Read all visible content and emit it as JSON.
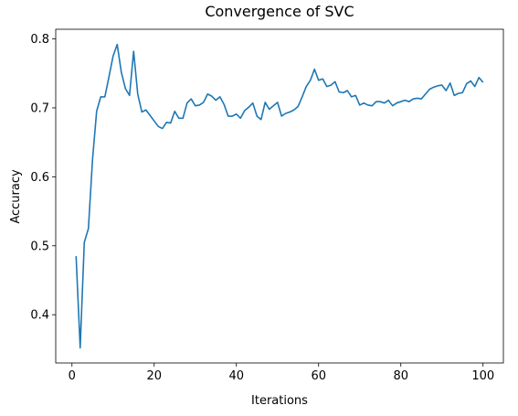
{
  "chart_data": {
    "type": "line",
    "title": "Convergence of SVC",
    "x_label": "Iterations",
    "y_label": "Accuracy",
    "x": [
      1,
      2,
      3,
      4,
      5,
      6,
      7,
      8,
      9,
      10,
      11,
      12,
      13,
      14,
      15,
      16,
      17,
      18,
      19,
      20,
      21,
      22,
      23,
      24,
      25,
      26,
      27,
      28,
      29,
      30,
      31,
      32,
      33,
      34,
      35,
      36,
      37,
      38,
      39,
      40,
      41,
      42,
      43,
      44,
      45,
      46,
      47,
      48,
      49,
      50,
      51,
      52,
      53,
      54,
      55,
      56,
      57,
      58,
      59,
      60,
      61,
      62,
      63,
      64,
      65,
      66,
      67,
      68,
      69,
      70,
      71,
      72,
      73,
      74,
      75,
      76,
      77,
      78,
      79,
      80,
      81,
      82,
      83,
      84,
      85,
      86,
      87,
      88,
      89,
      90,
      91,
      92,
      93,
      94,
      95,
      96,
      97,
      98,
      99,
      100
    ],
    "series": [
      {
        "name": "Accuracy",
        "color": "#1f77b4",
        "values": [
          0.485,
          0.352,
          0.505,
          0.525,
          0.625,
          0.695,
          0.716,
          0.716,
          0.745,
          0.775,
          0.792,
          0.752,
          0.728,
          0.718,
          0.782,
          0.72,
          0.694,
          0.697,
          0.689,
          0.681,
          0.673,
          0.67,
          0.679,
          0.678,
          0.695,
          0.685,
          0.685,
          0.707,
          0.713,
          0.703,
          0.704,
          0.708,
          0.72,
          0.717,
          0.711,
          0.716,
          0.705,
          0.688,
          0.688,
          0.691,
          0.685,
          0.696,
          0.701,
          0.707,
          0.688,
          0.683,
          0.708,
          0.698,
          0.703,
          0.708,
          0.688,
          0.692,
          0.694,
          0.697,
          0.702,
          0.716,
          0.731,
          0.74,
          0.756,
          0.74,
          0.742,
          0.731,
          0.733,
          0.738,
          0.723,
          0.722,
          0.725,
          0.716,
          0.718,
          0.704,
          0.707,
          0.704,
          0.703,
          0.709,
          0.709,
          0.707,
          0.711,
          0.703,
          0.707,
          0.709,
          0.711,
          0.709,
          0.713,
          0.714,
          0.713,
          0.72,
          0.727,
          0.73,
          0.732,
          0.733,
          0.725,
          0.736,
          0.718,
          0.721,
          0.722,
          0.735,
          0.739,
          0.731,
          0.744,
          0.737
        ]
      }
    ],
    "xlim": [
      -3.95,
      104.95
    ],
    "xticks": [
      0,
      20,
      40,
      60,
      80,
      100
    ],
    "ylim": [
      0.33,
      0.814
    ],
    "yticks": [
      0.4,
      0.5,
      0.6,
      0.7,
      0.8
    ],
    "grid": false
  }
}
